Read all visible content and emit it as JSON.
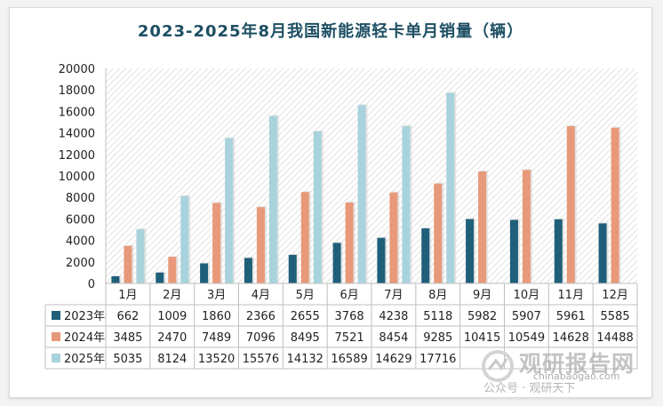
{
  "chart_data": {
    "type": "bar",
    "title": "2023-2025年8月我国新能源轻卡单月销量（辆）",
    "categories": [
      "1月",
      "2月",
      "3月",
      "4月",
      "5月",
      "6月",
      "7月",
      "8月",
      "9月",
      "10月",
      "11月",
      "12月"
    ],
    "ylim": [
      0,
      20000
    ],
    "yticks": [
      0,
      2000,
      4000,
      6000,
      8000,
      10000,
      12000,
      14000,
      16000,
      18000,
      20000
    ],
    "grid": false,
    "legend": "data-table-rows",
    "series": [
      {
        "name": "2023年",
        "color": "#1f5f7a",
        "values": [
          662,
          1009,
          1860,
          2366,
          2655,
          3768,
          4238,
          5118,
          5982,
          5907,
          5961,
          5585
        ]
      },
      {
        "name": "2024年",
        "color": "#e8997a",
        "values": [
          3485,
          2470,
          7489,
          7096,
          8495,
          7521,
          8454,
          9285,
          10415,
          10549,
          14628,
          14488
        ]
      },
      {
        "name": "2025年",
        "color": "#a9d3dc",
        "values": [
          5035,
          8124,
          13520,
          15576,
          14132,
          16589,
          14629,
          17716,
          null,
          null,
          null,
          null
        ]
      }
    ]
  },
  "watermark": {
    "brand": "观研报告网",
    "url": "chinabaogao.com",
    "account": "公众号 · 观研天下"
  }
}
